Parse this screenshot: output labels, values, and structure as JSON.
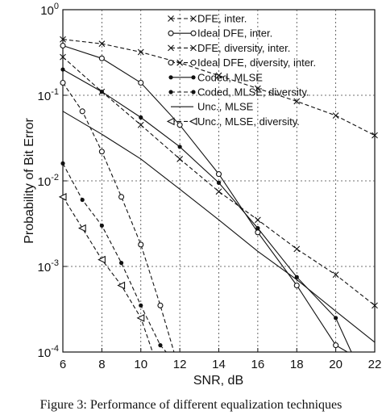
{
  "chart_data": {
    "type": "line",
    "xlabel": "SNR, dB",
    "ylabel": "Probability of Bit Error",
    "xlim": [
      6,
      22
    ],
    "ylim": [
      0.0001,
      1
    ],
    "yscale": "log",
    "grid": true,
    "legend_position": "top-right",
    "x_ticks": [
      "6",
      "8",
      "10",
      "12",
      "14",
      "16",
      "18",
      "20",
      "22"
    ],
    "y_ticks": [
      {
        "value": 1,
        "base": "10",
        "exp": "0"
      },
      {
        "value": 0.1,
        "base": "10",
        "exp": "-1"
      },
      {
        "value": 0.01,
        "base": "10",
        "exp": "-2"
      },
      {
        "value": 0.001,
        "base": "10",
        "exp": "-3"
      },
      {
        "value": 0.0001,
        "base": "10",
        "exp": "-4"
      }
    ],
    "series": [
      {
        "name": "DFE, inter.",
        "line": "dash",
        "marker": "x",
        "points": [
          [
            6,
            0.28
          ],
          [
            8,
            0.11
          ],
          [
            10,
            0.045
          ],
          [
            12,
            0.018
          ],
          [
            14,
            0.0075
          ],
          [
            16,
            0.0035
          ],
          [
            18,
            0.0016
          ],
          [
            20,
            0.0008
          ],
          [
            22,
            0.00035
          ]
        ]
      },
      {
        "name": "Ideal DFE, inter.",
        "line": "solid",
        "marker": "o",
        "points": [
          [
            6,
            0.38
          ],
          [
            8,
            0.27
          ],
          [
            10,
            0.14
          ],
          [
            12,
            0.045
          ],
          [
            14,
            0.012
          ],
          [
            16,
            0.0025
          ],
          [
            18,
            0.0006
          ],
          [
            20,
            0.00012
          ],
          [
            20.6,
            0.0001
          ]
        ]
      },
      {
        "name": "DFE, diversity, inter.",
        "line": "dash",
        "marker": "x",
        "points": [
          [
            6,
            0.45
          ],
          [
            8,
            0.4
          ],
          [
            10,
            0.32
          ],
          [
            12,
            0.24
          ],
          [
            14,
            0.17
          ],
          [
            16,
            0.12
          ],
          [
            18,
            0.085
          ],
          [
            20,
            0.058
          ],
          [
            22,
            0.034
          ]
        ]
      },
      {
        "name": "Ideal DFE, diversity, inter.",
        "line": "dash",
        "marker": "o",
        "points": [
          [
            6,
            0.14
          ],
          [
            7,
            0.065
          ],
          [
            8,
            0.022
          ],
          [
            9,
            0.0065
          ],
          [
            10,
            0.0018
          ],
          [
            11,
            0.00035
          ],
          [
            11.7,
            0.0001
          ]
        ]
      },
      {
        "name": "Coded, MLSE",
        "line": "solid",
        "marker": "dot",
        "points": [
          [
            6,
            0.2
          ],
          [
            8,
            0.11
          ],
          [
            10,
            0.055
          ],
          [
            12,
            0.025
          ],
          [
            14,
            0.0095
          ],
          [
            16,
            0.0028
          ],
          [
            18,
            0.00075
          ],
          [
            20,
            0.00025
          ],
          [
            20.8,
            0.0001
          ]
        ]
      },
      {
        "name": "Coded, MLSE, diversity.",
        "line": "dash",
        "marker": "dot",
        "points": [
          [
            6,
            0.016
          ],
          [
            7,
            0.006
          ],
          [
            8,
            0.003
          ],
          [
            9,
            0.0011
          ],
          [
            10,
            0.00035
          ],
          [
            11,
            0.00012
          ],
          [
            11.3,
            0.0001
          ]
        ]
      },
      {
        "name": "Unc., MLSE",
        "line": "solid",
        "marker": "none",
        "points": [
          [
            6,
            0.065
          ],
          [
            8,
            0.035
          ],
          [
            10,
            0.018
          ],
          [
            12,
            0.008
          ],
          [
            14,
            0.0035
          ],
          [
            16,
            0.0015
          ],
          [
            18,
            0.0007
          ],
          [
            20,
            0.0003
          ],
          [
            22,
            0.00013
          ]
        ]
      },
      {
        "name": "Unc., MLSE, diversity.",
        "line": "dash",
        "marker": "triangle",
        "points": [
          [
            6,
            0.0065
          ],
          [
            7,
            0.0028
          ],
          [
            8,
            0.0012
          ],
          [
            9,
            0.0006
          ],
          [
            10,
            0.00025
          ],
          [
            10.6,
            0.0001
          ]
        ]
      }
    ]
  },
  "caption": "Figure 3: Performance of different equalization techniques"
}
